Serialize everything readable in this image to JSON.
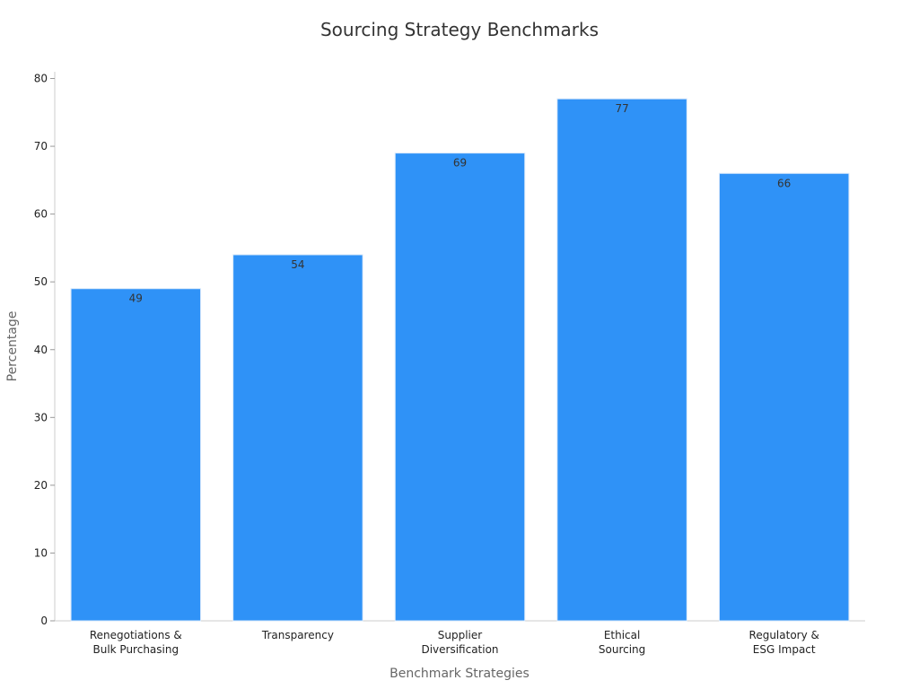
{
  "chart_data": {
    "type": "bar",
    "title": "Sourcing Strategy Benchmarks",
    "xlabel": "Benchmark Strategies",
    "ylabel": "Percentage",
    "categories": [
      [
        "Renegotiations &",
        "Bulk Purchasing"
      ],
      [
        "Transparency"
      ],
      [
        "Supplier",
        "Diversification"
      ],
      [
        "Ethical",
        "Sourcing"
      ],
      [
        "Regulatory &",
        "ESG Impact"
      ]
    ],
    "values": [
      49,
      54,
      69,
      77,
      66
    ],
    "ylim": [
      0,
      80
    ],
    "yticks": [
      0,
      10,
      20,
      30,
      40,
      50,
      60,
      70,
      80
    ],
    "grid": false,
    "bar_color": "#2f92f7",
    "bar_edge_color": "#d8e8fa"
  }
}
